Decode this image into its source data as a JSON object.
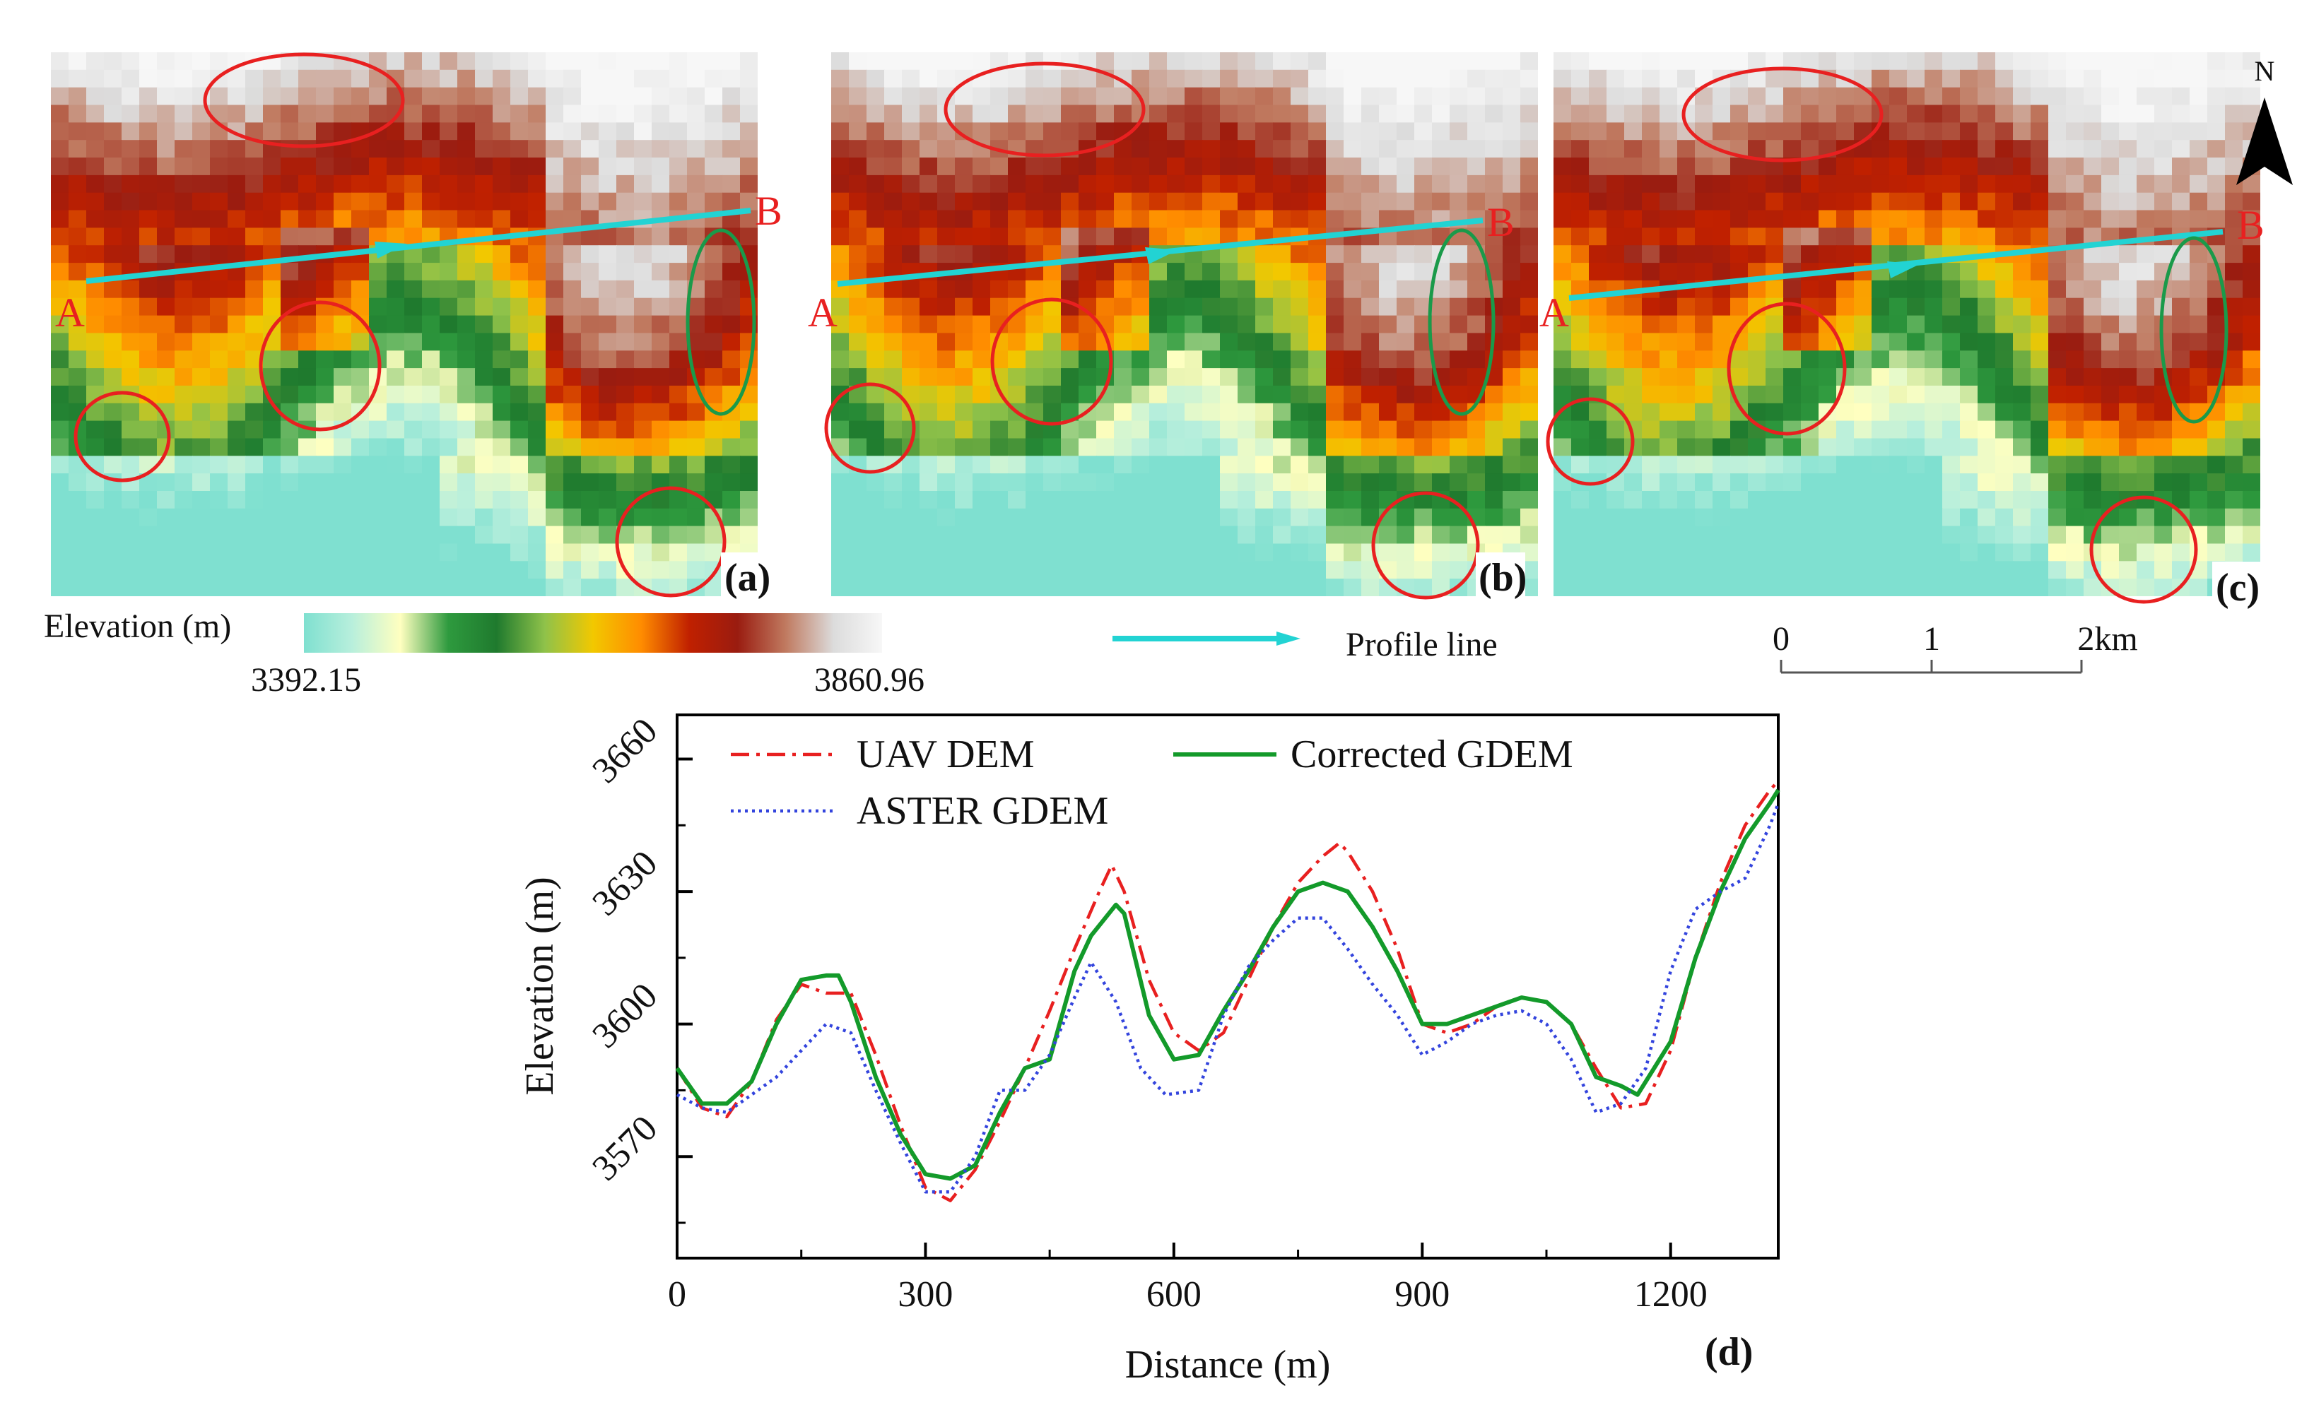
{
  "figure": {
    "panels": [
      {
        "id": "a",
        "label": "(a)",
        "seed": 11
      },
      {
        "id": "b",
        "label": "(b)",
        "seed": 23
      },
      {
        "id": "c",
        "label": "(c)",
        "seed": 37
      }
    ],
    "colorbar": {
      "label": "Elevation (m)",
      "min_text": "3392.15",
      "max_text": "3860.96",
      "min": 3392.15,
      "max": 3860.96,
      "stops": [
        "#7fe0d0",
        "#b8efdc",
        "#ffffc0",
        "#2e9a3e",
        "#1f7a2e",
        "#8fc24a",
        "#f2c800",
        "#ff8c00",
        "#c02000",
        "#9a1c10",
        "#c07a60",
        "#dcdcdc",
        "#f7f7f7"
      ]
    },
    "profile_legend": {
      "label": "Profile line",
      "color": "#22d3d3"
    },
    "profile_endpoints": {
      "start": "A",
      "end": "B"
    },
    "scalebar": {
      "ticks": [
        "0",
        "1",
        "2km"
      ]
    },
    "north_arrow": {
      "label": "N"
    },
    "marker_colors": {
      "error": "#e82020",
      "improved": "#1a9a4a"
    }
  },
  "chart_data": {
    "type": "line",
    "panel_label": "(d)",
    "xlabel": "Distance (m)",
    "ylabel": "Elevation (m)",
    "xlim": [
      0,
      1330
    ],
    "ylim": [
      3547,
      3670
    ],
    "xticks": [
      0,
      300,
      600,
      900,
      1200
    ],
    "xtick_labels": [
      "0",
      "300",
      "600",
      "900",
      "1200"
    ],
    "yticks": [
      3570,
      3600,
      3630,
      3660
    ],
    "ytick_labels": [
      "3570",
      "3600",
      "3630",
      "3660"
    ],
    "series": [
      {
        "name": "UAV DEM",
        "color": "#e82020",
        "dash": "dashdot",
        "x": [
          0,
          30,
          60,
          90,
          120,
          150,
          180,
          210,
          240,
          270,
          300,
          330,
          360,
          390,
          420,
          450,
          480,
          510,
          525,
          540,
          570,
          600,
          630,
          660,
          690,
          720,
          750,
          780,
          800,
          810,
          840,
          870,
          900,
          930,
          960,
          990,
          1020,
          1050,
          1080,
          1110,
          1140,
          1170,
          1200,
          1230,
          1260,
          1290,
          1320,
          1330
        ],
        "y": [
          3590,
          3581,
          3579,
          3587,
          3601,
          3609,
          3607,
          3607,
          3593,
          3577,
          3563,
          3560,
          3567,
          3578,
          3590,
          3603,
          3617,
          3630,
          3636,
          3630,
          3610,
          3598,
          3594,
          3598,
          3610,
          3622,
          3632,
          3638,
          3641,
          3639,
          3630,
          3617,
          3600,
          3598,
          3600,
          3604,
          3606,
          3605,
          3600,
          3590,
          3581,
          3582,
          3594,
          3615,
          3632,
          3645,
          3653,
          3655
        ]
      },
      {
        "name": "Corrected GDEM",
        "color": "#139a2a",
        "dash": "solid",
        "x": [
          0,
          30,
          60,
          90,
          120,
          150,
          180,
          195,
          210,
          240,
          270,
          300,
          330,
          360,
          390,
          420,
          450,
          480,
          500,
          530,
          540,
          570,
          600,
          630,
          660,
          690,
          720,
          750,
          780,
          810,
          840,
          870,
          900,
          930,
          960,
          990,
          1020,
          1050,
          1080,
          1110,
          1140,
          1160,
          1200,
          1230,
          1260,
          1290,
          1320,
          1330
        ],
        "y": [
          3590,
          3582,
          3582,
          3587,
          3600,
          3610,
          3611,
          3611,
          3605,
          3588,
          3575,
          3566,
          3565,
          3568,
          3580,
          3590,
          3592,
          3612,
          3620,
          3627,
          3625,
          3602,
          3592,
          3593,
          3603,
          3612,
          3622,
          3630,
          3632,
          3630,
          3622,
          3612,
          3600,
          3600,
          3602,
          3604,
          3606,
          3605,
          3600,
          3588,
          3586,
          3584,
          3596,
          3615,
          3630,
          3642,
          3650,
          3653
        ]
      },
      {
        "name": "ASTER GDEM",
        "color": "#3344dd",
        "dash": "dotted",
        "x": [
          0,
          30,
          60,
          90,
          120,
          150,
          180,
          210,
          240,
          270,
          300,
          330,
          360,
          390,
          420,
          450,
          480,
          500,
          530,
          560,
          590,
          630,
          660,
          690,
          720,
          750,
          780,
          810,
          840,
          870,
          900,
          930,
          960,
          990,
          1020,
          1050,
          1080,
          1110,
          1140,
          1170,
          1200,
          1230,
          1260,
          1290,
          1320,
          1330
        ],
        "y": [
          3584,
          3581,
          3580,
          3584,
          3588,
          3594,
          3600,
          3598,
          3585,
          3573,
          3562,
          3562,
          3570,
          3585,
          3585,
          3593,
          3606,
          3614,
          3605,
          3590,
          3584,
          3585,
          3602,
          3613,
          3619,
          3624,
          3624,
          3617,
          3609,
          3602,
          3593,
          3596,
          3600,
          3602,
          3603,
          3600,
          3592,
          3580,
          3582,
          3590,
          3612,
          3626,
          3630,
          3633,
          3645,
          3650
        ]
      }
    ]
  }
}
